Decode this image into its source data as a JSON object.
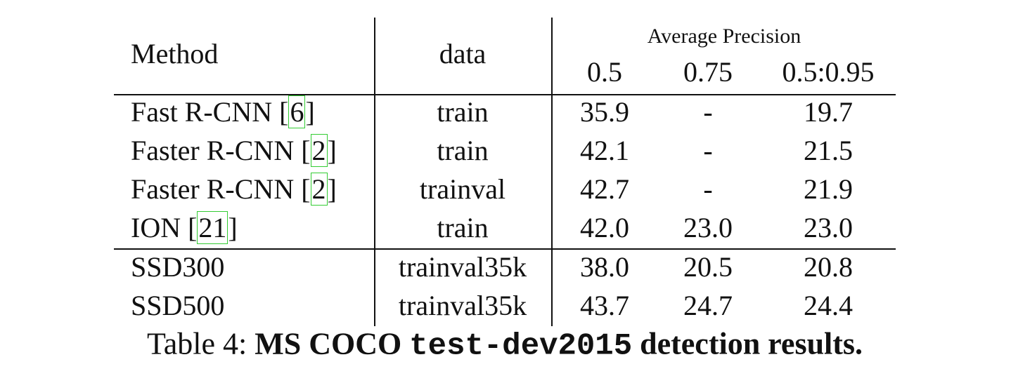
{
  "table": {
    "header": {
      "method": "Method",
      "data": "data",
      "group": "Average Precision",
      "sub": [
        "0.5",
        "0.75",
        "0.5:0.95"
      ]
    },
    "rows": [
      {
        "method": [
          "Fast R-CNN [",
          "6",
          "]"
        ],
        "data": "train",
        "values": [
          "35.9",
          "-",
          "19.7"
        ]
      },
      {
        "method": [
          "Faster R-CNN [",
          "2",
          "]"
        ],
        "data": "train",
        "values": [
          "42.1",
          "-",
          "21.5"
        ]
      },
      {
        "method": [
          "Faster R-CNN [",
          "2",
          "]"
        ],
        "data": "trainval",
        "values": [
          "42.7",
          "-",
          "21.9"
        ]
      },
      {
        "method": [
          "ION [",
          "21",
          "]"
        ],
        "data": "train",
        "values": [
          "42.0",
          "23.0",
          "23.0"
        ]
      },
      {
        "method": [
          "SSD300"
        ],
        "data": "trainval35k",
        "values": [
          "38.0",
          "20.5",
          "20.8"
        ]
      },
      {
        "method": [
          "SSD500"
        ],
        "data": "trainval35k",
        "values": [
          "43.7",
          "24.7",
          "24.4"
        ]
      }
    ]
  },
  "caption": {
    "label": "Table 4: ",
    "bold1": "MS COCO ",
    "code": "test-dev2015",
    "bold2": " detection results."
  }
}
